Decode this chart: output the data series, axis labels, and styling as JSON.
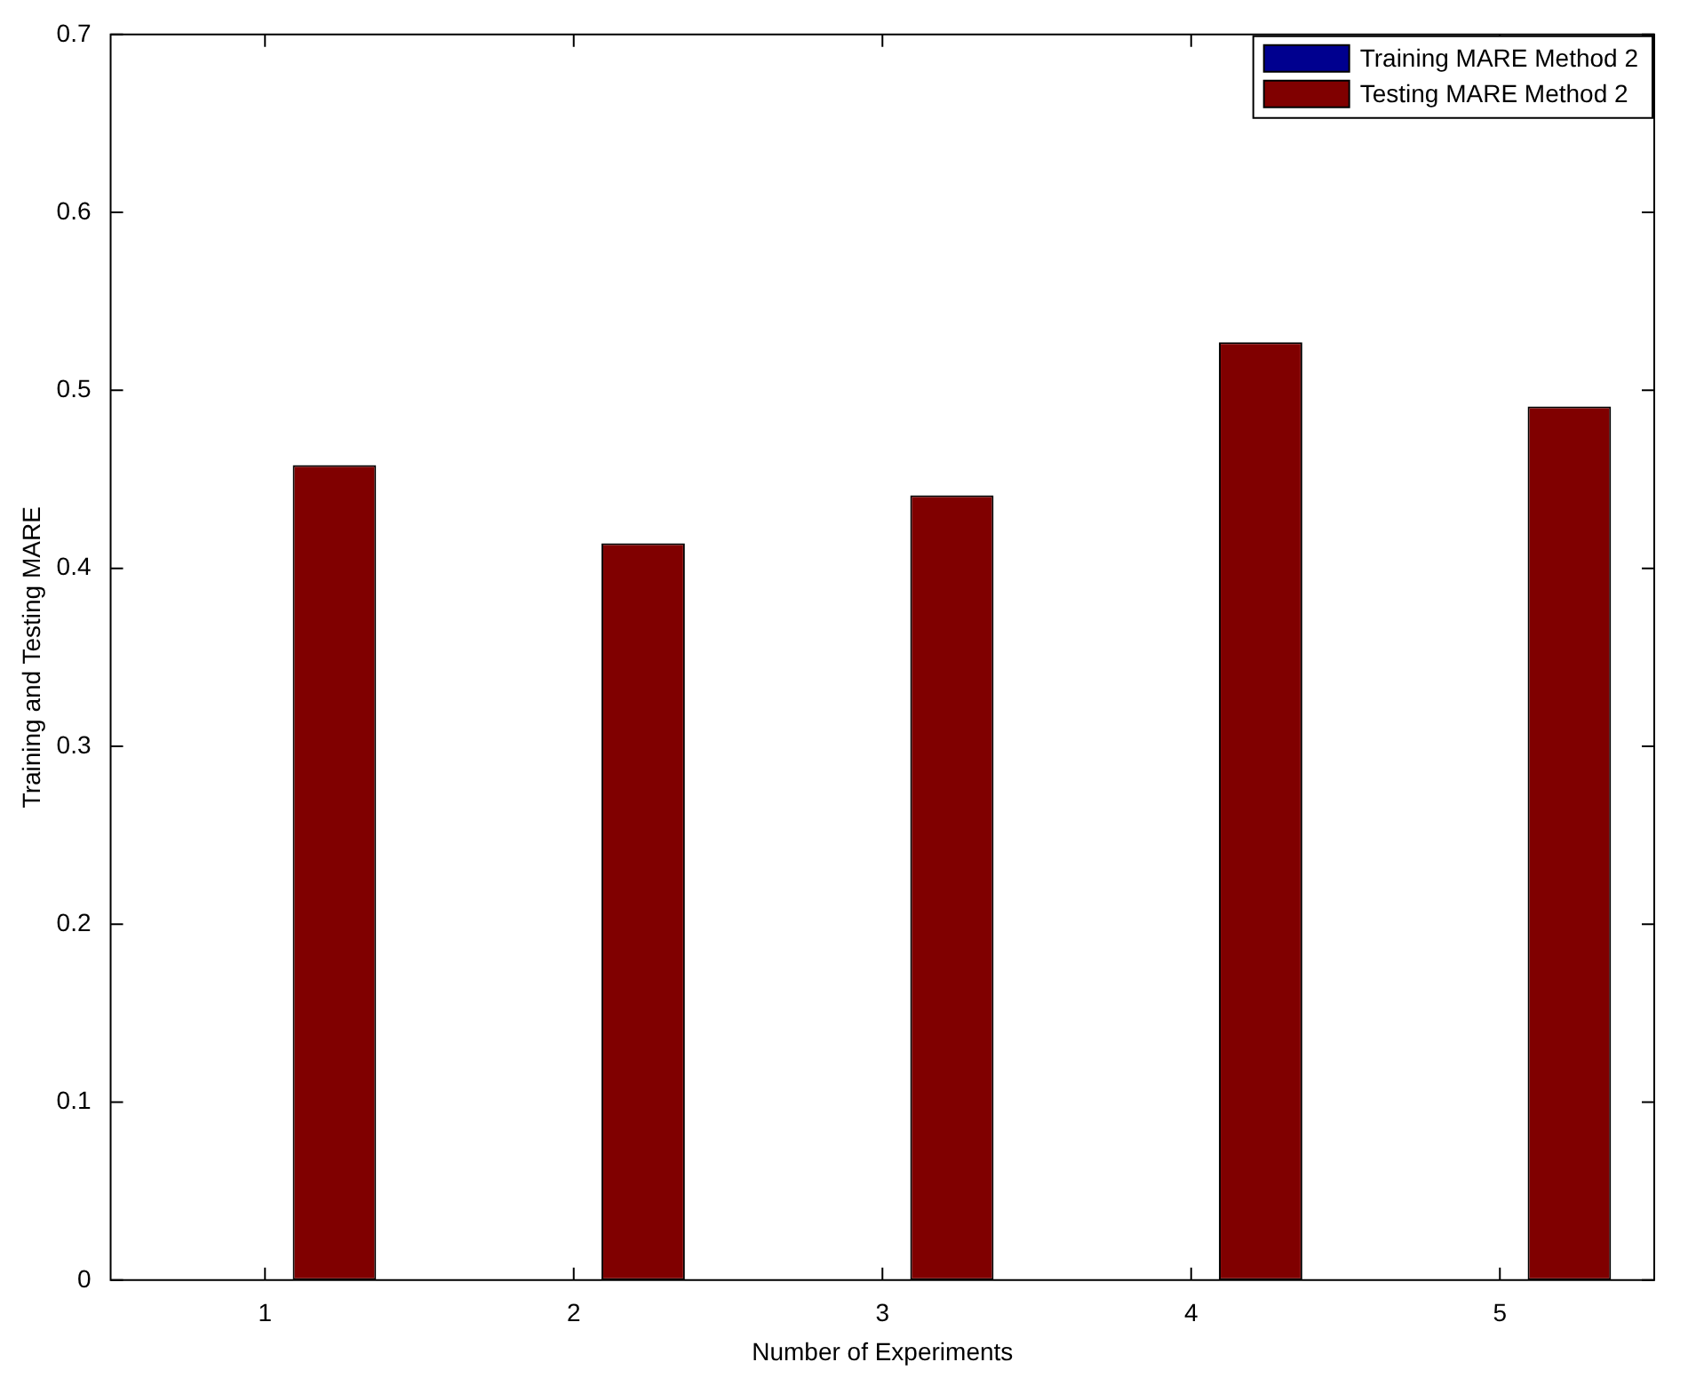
{
  "chart_data": {
    "type": "bar",
    "xlabel": "Number of Experiments",
    "ylabel": "Training and Testing MARE",
    "categories": [
      "1",
      "2",
      "3",
      "4",
      "5"
    ],
    "series": [
      {
        "name": "Training MARE Method 2",
        "color": "#00008f",
        "values": [
          0,
          0,
          0,
          0,
          0
        ]
      },
      {
        "name": "Testing MARE Method 2",
        "color": "#800000",
        "values": [
          0.458,
          0.414,
          0.441,
          0.527,
          0.491
        ]
      }
    ],
    "ylim": [
      0,
      0.7
    ],
    "yticks": [
      0,
      0.1,
      0.2,
      0.3,
      0.4,
      0.5,
      0.6,
      0.7
    ],
    "grid": false,
    "legend": "top right"
  }
}
